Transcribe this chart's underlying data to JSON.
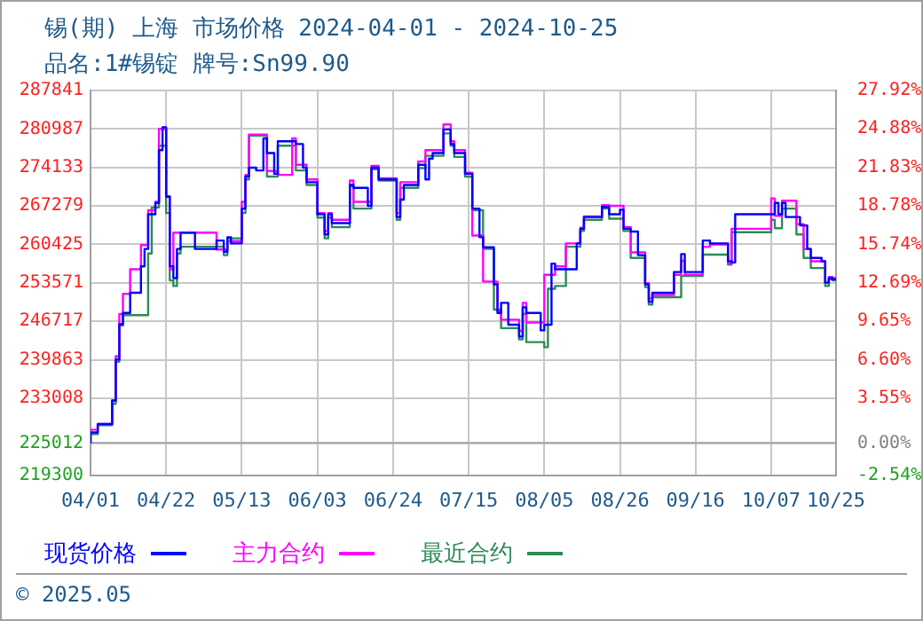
{
  "chart_data": {
    "type": "step",
    "title": "锡(期) 上海 市场价格 2024-04-01 - 2024-10-25",
    "subtitle": "品名:1#锡锭 牌号:Sn99.90",
    "annotations": [
      "© 2025.05"
    ],
    "legend": "bottom",
    "grid": true,
    "marker": "none",
    "line_style": "solid",
    "xlim": [
      "--04-01",
      "--10-25"
    ],
    "xticks": [
      {
        "value": "--04-01",
        "label": "04/01"
      },
      {
        "value": "--04-22",
        "label": "04/22"
      },
      {
        "value": "--05-13",
        "label": "05/13"
      },
      {
        "value": "--06-03",
        "label": "06/03"
      },
      {
        "value": "--06-24",
        "label": "06/24"
      },
      {
        "value": "--07-15",
        "label": "07/15"
      },
      {
        "value": "--08-05",
        "label": "08/05"
      },
      {
        "value": "--08-26",
        "label": "08/26"
      },
      {
        "value": "--09-16",
        "label": "09/16"
      },
      {
        "value": "--10-07",
        "label": "10/07"
      },
      {
        "value": "--10-25",
        "label": "10/25"
      }
    ],
    "ylim": [
      219300,
      287841
    ],
    "yticks": [
      219300,
      225012,
      233008,
      239863,
      246717,
      253571,
      260425,
      267279,
      274133,
      280987,
      287841
    ],
    "y2lim": [
      -2.54,
      27.92
    ],
    "y2ticks": [
      {
        "value": -2.54,
        "label": "-2.54%"
      },
      {
        "value": 0,
        "label": "0.00%"
      },
      {
        "value": 3.55,
        "label": "3.55%"
      },
      {
        "value": 6.6,
        "label": "6.60%"
      },
      {
        "value": 9.65,
        "label": "9.65%"
      },
      {
        "value": 12.69,
        "label": "12.69%"
      },
      {
        "value": 15.74,
        "label": "15.74%"
      },
      {
        "value": 18.78,
        "label": "18.78%"
      },
      {
        "value": 21.83,
        "label": "21.83%"
      },
      {
        "value": 24.88,
        "label": "24.88%"
      },
      {
        "value": 27.92,
        "label": "27.92%"
      }
    ],
    "ref_lines": [
      {
        "axis": "y2",
        "value": 0,
        "color": "#a0a0a0",
        "line_style": "solid"
      }
    ],
    "series": [
      {
        "name": "现货价格",
        "color": "#0000ff",
        "x": [
          "--04-01",
          "--04-03",
          "--04-07",
          "--04-08",
          "--04-09",
          "--04-10",
          "--04-12",
          "--04-15",
          "--04-16",
          "--04-17",
          "--04-19",
          "--04-20",
          "--04-21",
          "--04-22",
          "--04-23",
          "--04-24",
          "--04-25",
          "--04-26",
          "--04-30",
          "--05-06",
          "--05-08",
          "--05-09",
          "--05-10",
          "--05-13",
          "--05-14",
          "--05-15",
          "--05-17",
          "--05-19",
          "--05-20",
          "--05-22",
          "--05-23",
          "--05-28",
          "--05-30",
          "--05-31",
          "--06-03",
          "--06-05",
          "--06-06",
          "--06-07",
          "--06-12",
          "--06-13",
          "--06-17",
          "--06-18",
          "--06-20",
          "--06-25",
          "--06-26",
          "--06-27",
          "--07-01",
          "--07-03",
          "--07-04",
          "--07-05",
          "--07-08",
          "--07-10",
          "--07-11",
          "--07-14",
          "--07-16",
          "--07-18",
          "--07-19",
          "--07-22",
          "--07-23",
          "--07-24",
          "--07-26",
          "--07-29",
          "--07-30",
          "--07-31",
          "--08-04",
          "--08-05",
          "--08-07",
          "--08-08",
          "--08-14",
          "--08-15",
          "--08-16",
          "--08-21",
          "--08-23",
          "--08-26",
          "--08-27",
          "--08-29",
          "--08-31",
          "--09-02",
          "--09-03",
          "--09-04",
          "--09-10",
          "--09-12",
          "--09-13",
          "--09-18",
          "--09-20",
          "--09-25",
          "--09-26",
          "--09-27",
          "--10-08",
          "--10-09",
          "--10-10",
          "--10-11",
          "--10-15",
          "--10-17",
          "--10-18",
          "--10-21",
          "--10-22",
          "--10-23",
          "--10-24",
          "--10-25"
        ],
        "values": [
          225012,
          226900,
          228400,
          232600,
          239900,
          246200,
          248200,
          251800,
          256500,
          259600,
          265800,
          267800,
          277200,
          281300,
          268900,
          256500,
          254400,
          259600,
          262500,
          259600,
          261100,
          259100,
          261700,
          260600,
          266800,
          272500,
          274100,
          273600,
          279300,
          276700,
          273000,
          278800,
          278300,
          274100,
          271500,
          265800,
          262200,
          265800,
          264200,
          271000,
          270500,
          267300,
          274100,
          272000,
          265300,
          268400,
          271000,
          274600,
          272000,
          275700,
          276700,
          280900,
          278300,
          276700,
          273000,
          266800,
          261700,
          259900,
          253300,
          248200,
          250000,
          246100,
          244000,
          249200,
          248200,
          245100,
          246100,
          257000,
          256000,
          260600,
          263200,
          265300,
          267100,
          265800,
          266600,
          263200,
          262700,
          258500,
          253300,
          250200,
          251800,
          255500,
          258700,
          255500,
          261100,
          260600,
          257400,
          257200,
          265800,
          267800,
          265800,
          267800,
          265300,
          263800,
          259600,
          258000,
          257400,
          253600,
          254400,
          254200
        ]
      },
      {
        "name": "主力合约",
        "color": "#ff00ff",
        "x": [
          "--04-01",
          "--04-03",
          "--04-07",
          "--04-08",
          "--04-09",
          "--04-10",
          "--04-12",
          "--04-15",
          "--04-17",
          "--04-19",
          "--04-20",
          "--04-22",
          "--04-23",
          "--04-24",
          "--04-26",
          "--05-06",
          "--05-09",
          "--05-13",
          "--05-14",
          "--05-15",
          "--05-20",
          "--05-23",
          "--05-27",
          "--05-28",
          "--05-31",
          "--06-03",
          "--06-05",
          "--06-06",
          "--06-07",
          "--06-12",
          "--06-13",
          "--06-18",
          "--06-20",
          "--06-25",
          "--06-26",
          "--07-01",
          "--07-03",
          "--07-08",
          "--07-10",
          "--07-11",
          "--07-14",
          "--07-16",
          "--07-19",
          "--07-23",
          "--07-24",
          "--07-29",
          "--07-30",
          "--07-31",
          "--08-05",
          "--08-08",
          "--08-11",
          "--08-15",
          "--08-16",
          "--08-21",
          "--08-23",
          "--08-27",
          "--08-29",
          "--09-02",
          "--09-03",
          "--09-04",
          "--09-10",
          "--09-12",
          "--09-13",
          "--09-18",
          "--09-20",
          "--09-25",
          "--09-26",
          "--09-27",
          "--10-07",
          "--10-08",
          "--10-10",
          "--10-11",
          "--10-14",
          "--10-16",
          "--10-18",
          "--10-22",
          "--10-23",
          "--10-24",
          "--10-25"
        ],
        "values": [
          225012,
          227400,
          228400,
          232600,
          240500,
          248000,
          251600,
          256000,
          260300,
          266500,
          268000,
          281000,
          269000,
          256000,
          262500,
          262500,
          259500,
          261000,
          268000,
          272800,
          280000,
          273500,
          272800,
          279300,
          274600,
          272000,
          266000,
          262800,
          266000,
          264800,
          271800,
          268000,
          274400,
          272200,
          266000,
          271500,
          275200,
          277200,
          281800,
          278800,
          277200,
          273200,
          262000,
          253800,
          248500,
          247000,
          245000,
          250000,
          246500,
          255000,
          256500,
          260600,
          263400,
          265400,
          267400,
          267300,
          263500,
          259000,
          253500,
          250800,
          251400,
          255000,
          257500,
          255000,
          260000,
          260400,
          257000,
          263200,
          263200,
          268600,
          265500,
          268200,
          268200,
          264000,
          259600,
          257400,
          253600,
          254600,
          254400
        ]
      },
      {
        "name": "最近合约",
        "color": "#2e8b57",
        "x": [
          "--04-01",
          "--04-03",
          "--04-07",
          "--04-08",
          "--04-09",
          "--04-10",
          "--04-12",
          "--04-17",
          "--04-18",
          "--04-20",
          "--04-22",
          "--04-23",
          "--04-24",
          "--04-25",
          "--04-26",
          "--05-06",
          "--05-08",
          "--05-09",
          "--05-13",
          "--05-14",
          "--05-15",
          "--05-20",
          "--05-23",
          "--05-28",
          "--05-31",
          "--06-03",
          "--06-05",
          "--06-06",
          "--06-07",
          "--06-12",
          "--06-13",
          "--06-18",
          "--06-20",
          "--06-25",
          "--06-26",
          "--07-01",
          "--07-03",
          "--07-08",
          "--07-10",
          "--07-11",
          "--07-14",
          "--07-16",
          "--07-19",
          "--07-22",
          "--07-24",
          "--07-29",
          "--07-30",
          "--07-31",
          "--08-05",
          "--08-06",
          "--08-08",
          "--08-11",
          "--08-15",
          "--08-16",
          "--08-21",
          "--08-23",
          "--08-27",
          "--08-29",
          "--09-02",
          "--09-03",
          "--09-04",
          "--09-12",
          "--09-13",
          "--09-18",
          "--09-20",
          "--09-25",
          "--09-26",
          "--09-27",
          "--10-07",
          "--10-08",
          "--10-10",
          "--10-11",
          "--10-14",
          "--10-16",
          "--10-18",
          "--10-22",
          "--10-23",
          "--10-24",
          "--10-25"
        ],
        "values": [
          225012,
          226600,
          228200,
          232000,
          239500,
          246000,
          247800,
          247800,
          258800,
          267000,
          278000,
          266000,
          254000,
          253000,
          258800,
          260000,
          260000,
          258500,
          261500,
          266000,
          272000,
          279800,
          272500,
          278000,
          273600,
          271000,
          265200,
          261500,
          265200,
          263500,
          270800,
          266800,
          273800,
          271800,
          264800,
          270500,
          274000,
          276200,
          280200,
          278000,
          276000,
          272500,
          266500,
          259600,
          248800,
          245500,
          243500,
          248000,
          243000,
          242100,
          252500,
          253000,
          260000,
          262800,
          264800,
          266800,
          265000,
          262800,
          258000,
          252800,
          249700,
          251000,
          254800,
          254800,
          258600,
          258600,
          256800,
          262600,
          262600,
          264800,
          263300,
          266800,
          266800,
          262200,
          258000,
          256200,
          253000,
          254200,
          254000
        ]
      }
    ]
  }
}
